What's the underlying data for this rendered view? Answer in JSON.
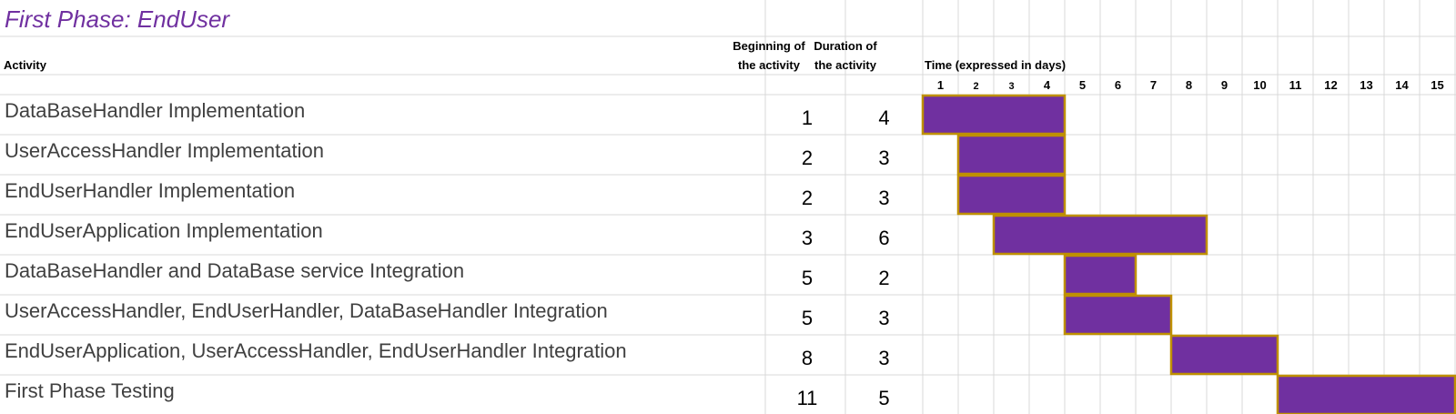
{
  "title": "First Phase: EndUser",
  "headers": {
    "activity": "Activity",
    "beginning_line1": "Beginning of",
    "beginning_line2": "the activity",
    "duration_line1": "Duration of",
    "duration_line2": "the activity",
    "time": "Time (expressed in days)"
  },
  "colors": {
    "title": "#7030A0",
    "bar_fill": "#7030A0",
    "bar_border": "#BF9000",
    "grid": "#D9D9D9",
    "text": "#404040"
  },
  "chart_data": {
    "type": "gantt",
    "days": [
      "1",
      "2",
      "3",
      "4",
      "5",
      "6",
      "7",
      "8",
      "9",
      "10",
      "11",
      "12",
      "13",
      "14",
      "15"
    ],
    "tasks": [
      {
        "activity": "DataBaseHandler Implementation",
        "start": 1,
        "duration": 4
      },
      {
        "activity": "UserAccessHandler Implementation",
        "start": 2,
        "duration": 3
      },
      {
        "activity": "EndUserHandler Implementation",
        "start": 2,
        "duration": 3
      },
      {
        "activity": "EndUserApplication Implementation",
        "start": 3,
        "duration": 6
      },
      {
        "activity": "DataBaseHandler and DataBase service Integration",
        "start": 5,
        "duration": 2
      },
      {
        "activity": "UserAccessHandler, EndUserHandler, DataBaseHandler Integration",
        "start": 5,
        "duration": 3
      },
      {
        "activity": "EndUserApplication, UserAccessHandler, EndUserHandler Integration",
        "start": 8,
        "duration": 3
      },
      {
        "activity": "First Phase Testing",
        "start": 11,
        "duration": 5
      }
    ]
  }
}
